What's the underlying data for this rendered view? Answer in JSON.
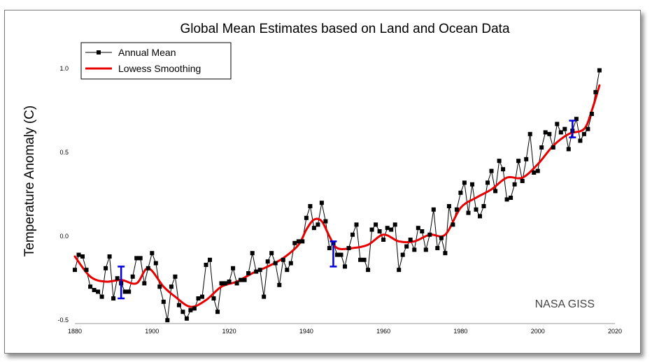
{
  "chart_data": {
    "type": "line",
    "title": "Global Mean Estimates based on Land and Ocean Data",
    "xlabel": "",
    "ylabel": "Temperature Anomaly (C)",
    "credit": "NASA GISS",
    "xlim": [
      1880,
      2020
    ],
    "ylim": [
      -0.52,
      1.18
    ],
    "x_ticks": [
      1880,
      1900,
      1920,
      1940,
      1960,
      1980,
      2000,
      2020
    ],
    "x_tick_labels": [
      "1880",
      "1900",
      "1920",
      "1940",
      "1960",
      "1980",
      "2000",
      "2020"
    ],
    "y_ticks": [
      -0.5,
      0.0,
      0.5,
      1.0
    ],
    "y_tick_labels": [
      "-0.5",
      "0.0",
      "0.5",
      "1.0"
    ],
    "grid": false,
    "legend": {
      "position": "top-left",
      "entries": [
        "Annual Mean",
        "Lowess Smoothing"
      ]
    },
    "colors": {
      "annual": "#000000",
      "smooth": "#e60000",
      "error_bar": "#0000dd"
    },
    "series": [
      {
        "name": "Annual Mean",
        "marker": "square",
        "x": [
          1880,
          1881,
          1882,
          1883,
          1884,
          1885,
          1886,
          1887,
          1888,
          1889,
          1890,
          1891,
          1892,
          1893,
          1894,
          1895,
          1896,
          1897,
          1898,
          1899,
          1900,
          1901,
          1902,
          1903,
          1904,
          1905,
          1906,
          1907,
          1908,
          1909,
          1910,
          1911,
          1912,
          1913,
          1914,
          1915,
          1916,
          1917,
          1918,
          1919,
          1920,
          1921,
          1922,
          1923,
          1924,
          1925,
          1926,
          1927,
          1928,
          1929,
          1930,
          1931,
          1932,
          1933,
          1934,
          1935,
          1936,
          1937,
          1938,
          1939,
          1940,
          1941,
          1942,
          1943,
          1944,
          1945,
          1946,
          1947,
          1948,
          1949,
          1950,
          1951,
          1952,
          1953,
          1954,
          1955,
          1956,
          1957,
          1958,
          1959,
          1960,
          1961,
          1962,
          1963,
          1964,
          1965,
          1966,
          1967,
          1968,
          1969,
          1970,
          1971,
          1972,
          1973,
          1974,
          1975,
          1976,
          1977,
          1978,
          1979,
          1980,
          1981,
          1982,
          1983,
          1984,
          1985,
          1986,
          1987,
          1988,
          1989,
          1990,
          1991,
          1992,
          1993,
          1994,
          1995,
          1996,
          1997,
          1998,
          1999,
          2000,
          2001,
          2002,
          2003,
          2004,
          2005,
          2006,
          2007,
          2008,
          2009,
          2010,
          2011,
          2012,
          2013,
          2014,
          2015,
          2016
        ],
        "y": [
          -0.2,
          -0.11,
          -0.12,
          -0.2,
          -0.3,
          -0.32,
          -0.33,
          -0.36,
          -0.19,
          -0.12,
          -0.37,
          -0.25,
          -0.28,
          -0.33,
          -0.33,
          -0.24,
          -0.13,
          -0.13,
          -0.28,
          -0.19,
          -0.1,
          -0.16,
          -0.3,
          -0.39,
          -0.5,
          -0.3,
          -0.24,
          -0.41,
          -0.45,
          -0.49,
          -0.44,
          -0.43,
          -0.37,
          -0.36,
          -0.17,
          -0.14,
          -0.37,
          -0.45,
          -0.28,
          -0.28,
          -0.27,
          -0.19,
          -0.28,
          -0.26,
          -0.26,
          -0.22,
          -0.1,
          -0.21,
          -0.2,
          -0.36,
          -0.15,
          -0.1,
          -0.16,
          -0.29,
          -0.14,
          -0.2,
          -0.16,
          -0.04,
          -0.03,
          -0.03,
          0.11,
          0.18,
          0.05,
          0.07,
          0.2,
          0.09,
          -0.07,
          -0.04,
          -0.11,
          -0.11,
          -0.18,
          -0.07,
          0.01,
          0.07,
          -0.14,
          -0.14,
          -0.2,
          0.04,
          0.07,
          0.03,
          -0.02,
          0.05,
          0.04,
          0.07,
          -0.2,
          -0.11,
          -0.06,
          -0.02,
          -0.08,
          0.05,
          0.03,
          -0.08,
          0.01,
          0.16,
          -0.07,
          -0.01,
          -0.1,
          0.18,
          0.07,
          0.16,
          0.26,
          0.32,
          0.14,
          0.31,
          0.16,
          0.12,
          0.18,
          0.32,
          0.39,
          0.27,
          0.45,
          0.4,
          0.22,
          0.23,
          0.31,
          0.45,
          0.33,
          0.46,
          0.61,
          0.38,
          0.39,
          0.53,
          0.62,
          0.61,
          0.53,
          0.67,
          0.62,
          0.64,
          0.52,
          0.63,
          0.7,
          0.57,
          0.61,
          0.64,
          0.73,
          0.86,
          0.99
        ]
      },
      {
        "name": "Lowess Smoothing",
        "x": [
          1880,
          1884,
          1888,
          1892,
          1896,
          1899,
          1903,
          1906,
          1910,
          1914,
          1918,
          1922,
          1926,
          1930,
          1934,
          1938,
          1940,
          1942,
          1944,
          1946,
          1948,
          1952,
          1956,
          1960,
          1964,
          1968,
          1972,
          1976,
          1980,
          1984,
          1988,
          1992,
          1996,
          2000,
          2004,
          2008,
          2012,
          2014,
          2016
        ],
        "y": [
          -0.12,
          -0.24,
          -0.27,
          -0.26,
          -0.28,
          -0.19,
          -0.3,
          -0.36,
          -0.42,
          -0.38,
          -0.3,
          -0.27,
          -0.22,
          -0.18,
          -0.13,
          -0.05,
          0.04,
          0.1,
          0.09,
          0.0,
          -0.07,
          -0.07,
          -0.05,
          0.01,
          -0.03,
          -0.03,
          0.01,
          0.01,
          0.17,
          0.23,
          0.28,
          0.35,
          0.35,
          0.43,
          0.54,
          0.61,
          0.64,
          0.75,
          0.9
        ]
      }
    ],
    "error_bars": [
      {
        "x": 1892,
        "low": -0.37,
        "high": -0.18
      },
      {
        "x": 1947,
        "low": -0.18,
        "high": -0.03
      },
      {
        "x": 2009,
        "low": 0.59,
        "high": 0.69
      }
    ]
  }
}
